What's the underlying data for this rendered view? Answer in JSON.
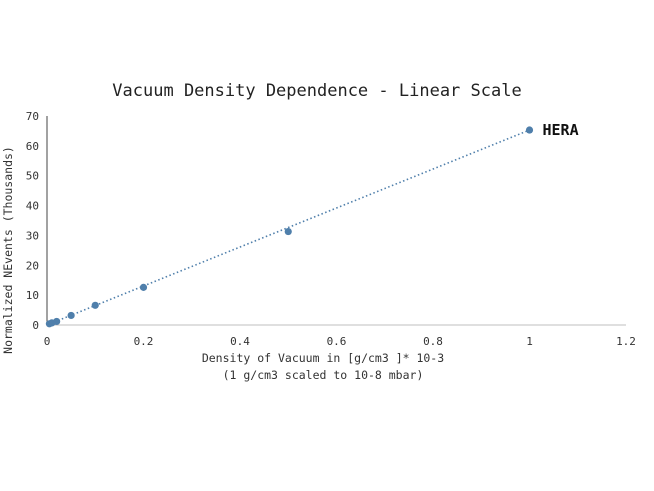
{
  "chart_data": {
    "type": "scatter",
    "title": "Vacuum Density Dependence - Linear Scale",
    "xlabel": "Density of Vacuum in [g/cm3 ]* 10-3",
    "xlabel_line2": "(1 g/cm3 scaled to 10-8 mbar)",
    "ylabel": "Normalized NEvents (Thousands)",
    "xlim": [
      0,
      1.2
    ],
    "ylim": [
      0,
      70
    ],
    "x_ticks": [
      0,
      0.2,
      0.4,
      0.6,
      0.8,
      1,
      1.2
    ],
    "y_ticks": [
      0,
      10,
      20,
      30,
      40,
      50,
      60,
      70
    ],
    "x_tick_labels": [
      "0",
      "0.2",
      "0.4",
      "0.6",
      "0.8",
      "1",
      "1.2"
    ],
    "y_tick_labels": [
      "0",
      "10",
      "20",
      "30",
      "40",
      "50",
      "60",
      "70"
    ],
    "grid": false,
    "legend": "none",
    "series": [
      {
        "x": [
          0.005,
          0.01,
          0.02,
          0.05,
          0.1,
          0.2,
          0.5,
          1.0
        ],
        "y": [
          0.4,
          0.7,
          1.2,
          3.2,
          6.6,
          12.6,
          31.3,
          65.3
        ],
        "color": "#4f7fab"
      }
    ],
    "trendline": {
      "type": "linear",
      "style": "dotted",
      "x": [
        0,
        1.0
      ],
      "y": [
        0,
        65.3
      ],
      "color": "#4f7fab"
    },
    "annotations": [
      {
        "text": "HERA",
        "x": 1.0,
        "y": 65.3
      }
    ]
  }
}
